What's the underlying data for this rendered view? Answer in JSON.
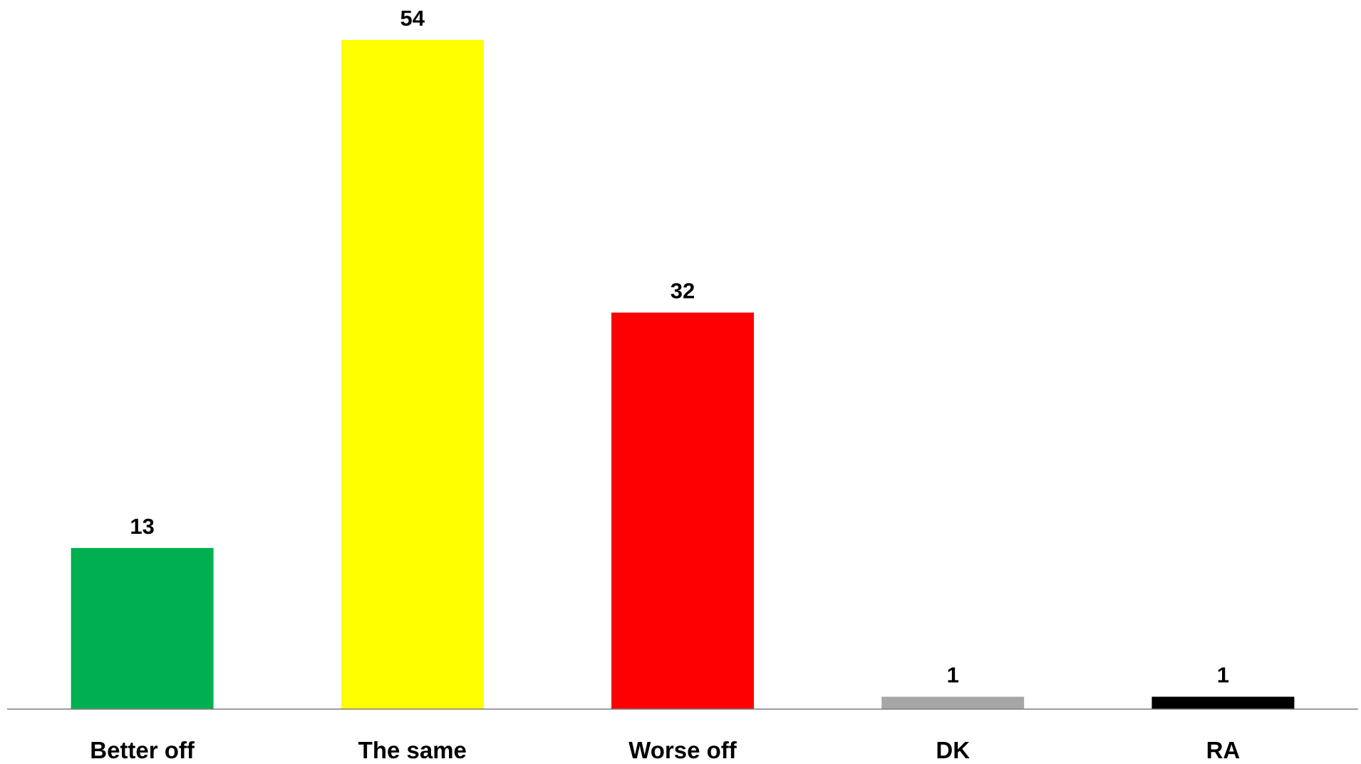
{
  "chart_data": {
    "type": "bar",
    "categories": [
      "Better off",
      "The same",
      "Worse off",
      "DK",
      "RA"
    ],
    "values": [
      13,
      54,
      32,
      1,
      1
    ],
    "value_labels": [
      "13",
      "54",
      "32",
      "1",
      "1"
    ],
    "colors": [
      "#00AF50",
      "#FFFF00",
      "#FF0000",
      "#A6A6A6",
      "#000000"
    ],
    "axis_color": "#7F7F7F",
    "title": "",
    "xlabel": "",
    "ylabel": "",
    "ylim": [
      0,
      54
    ],
    "grid": false,
    "legend": "none"
  }
}
